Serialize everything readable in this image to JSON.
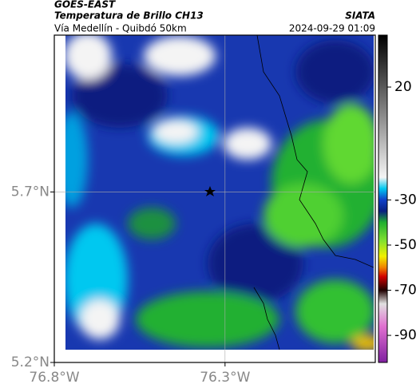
{
  "header": {
    "title": "GOES-EAST",
    "subtitle": "Temperatura de Brillo CH13",
    "location": "Vía Medellín - Quibdó 50km",
    "source": "SIATA",
    "timestamp": "2024-09-29 01:09"
  },
  "map": {
    "xlim": [
      -76.8,
      -75.86
    ],
    "ylim": [
      5.2,
      6.16
    ],
    "grid": true,
    "xticks": [
      {
        "value": -76.8,
        "label": "76.8°W"
      },
      {
        "value": -76.3,
        "label": "76.3°W"
      }
    ],
    "yticks": [
      {
        "value": 5.2,
        "label": "5.2°N"
      },
      {
        "value": 5.7,
        "label": "5.7°N"
      }
    ]
  },
  "colorbar": {
    "lim": [
      -102,
      43
    ],
    "ticks": [
      20,
      -30,
      -50,
      -70,
      -90
    ],
    "stops": [
      {
        "value": 43,
        "color": "#000000"
      },
      {
        "value": 20,
        "color": "#5a5a5a"
      },
      {
        "value": -20,
        "color": "#f4f4f4"
      },
      {
        "value": -25,
        "color": "#00c8f0"
      },
      {
        "value": -30,
        "color": "#1040c8"
      },
      {
        "value": -35,
        "color": "#082080"
      },
      {
        "value": -40,
        "color": "#20b030"
      },
      {
        "value": -48,
        "color": "#80e030"
      },
      {
        "value": -55,
        "color": "#f0f000"
      },
      {
        "value": -60,
        "color": "#f08000"
      },
      {
        "value": -64,
        "color": "#d00000"
      },
      {
        "value": -70,
        "color": "#200000"
      },
      {
        "value": -76,
        "color": "#e0e0e0"
      },
      {
        "value": -86,
        "color": "#e070d0"
      },
      {
        "value": -102,
        "color": "#8020a0"
      }
    ]
  }
}
